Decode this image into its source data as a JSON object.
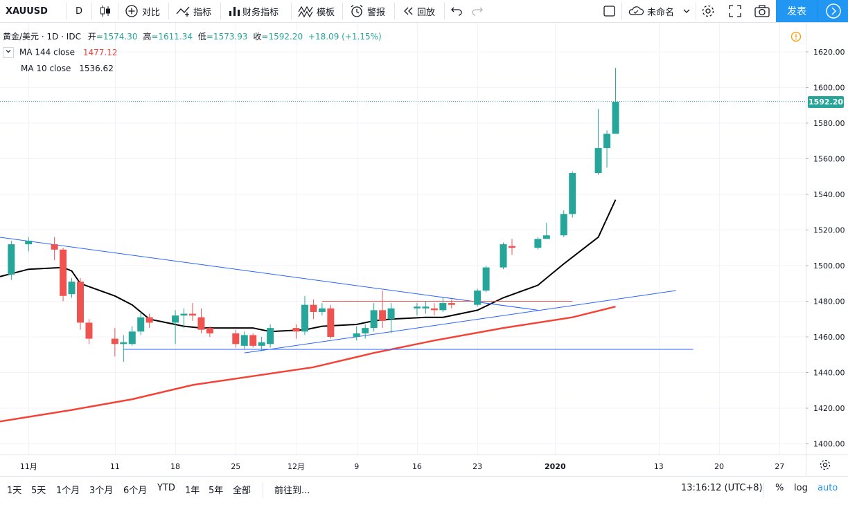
{
  "toolbar": {
    "symbol": "XAUUSD",
    "interval": "D",
    "compare": "对比",
    "indicators": "指标",
    "financials": "财务指标",
    "templates": "模板",
    "alert": "警报",
    "replay": "回放",
    "layout_name": "未命名",
    "publish": "发表"
  },
  "legend": {
    "title": "黄金/美元 · 1D · IDC",
    "open_label": "开",
    "open": "=1574.30",
    "high_label": "高",
    "high": "=1611.34",
    "low_label": "低",
    "low": "=1573.93",
    "close_label": "收",
    "close": "=1592.20",
    "change": "+18.09 (+1.15%)",
    "ma144_label": "MA 144 close",
    "ma144_value": "1477.12",
    "ma10_label": "MA 10 close",
    "ma10_value": "1536.62"
  },
  "bottombar": {
    "ranges": [
      "1天",
      "5天",
      "1个月",
      "3个月",
      "6个月",
      "YTD",
      "1年",
      "5年",
      "全部"
    ],
    "goto": "前往到...",
    "time": "13:16:12 (UTC+8)",
    "percent": "%",
    "log": "log",
    "auto": "auto"
  },
  "colors": {
    "up": "#26a69a",
    "down": "#ef5350",
    "ma144": "#f44336",
    "ma10": "#000000",
    "trend": "#2962ff",
    "accent": "#2196f3"
  },
  "chart_data": {
    "type": "candlestick",
    "title": "黄金/美元 · 1D · IDC",
    "ylim": [
      1390,
      1630
    ],
    "y_ticks": [
      1400,
      1420,
      1440,
      1460,
      1480,
      1500,
      1520,
      1540,
      1560,
      1580,
      1600,
      1620
    ],
    "last_price": 1592.2,
    "x_ticks": [
      {
        "label": "11月",
        "date": "2019-11-01"
      },
      {
        "label": "11",
        "date": "2019-11-11"
      },
      {
        "label": "18",
        "date": "2019-11-18"
      },
      {
        "label": "25",
        "date": "2019-11-25"
      },
      {
        "label": "12月",
        "date": "2019-12-02"
      },
      {
        "label": "9",
        "date": "2019-12-09"
      },
      {
        "label": "16",
        "date": "2019-12-16"
      },
      {
        "label": "23",
        "date": "2019-12-23"
      },
      {
        "label": "2020",
        "date": "2020-01-01"
      },
      {
        "label": "13",
        "date": "2020-01-13"
      },
      {
        "label": "20",
        "date": "2020-01-20"
      },
      {
        "label": "27",
        "date": "2020-01-27"
      }
    ],
    "candles": [
      {
        "date": "2019-10-28",
        "o": 1487,
        "h": 1497,
        "l": 1481,
        "c": 1495
      },
      {
        "date": "2019-10-30",
        "o": 1495,
        "h": 1514,
        "l": 1492,
        "c": 1512
      },
      {
        "date": "2019-11-01",
        "o": 1512,
        "h": 1516,
        "l": 1508,
        "c": 1514
      },
      {
        "date": "2019-11-04",
        "o": 1512,
        "h": 1516,
        "l": 1503,
        "c": 1509
      },
      {
        "date": "2019-11-05",
        "o": 1509,
        "h": 1510,
        "l": 1480,
        "c": 1483
      },
      {
        "date": "2019-11-06",
        "o": 1484,
        "h": 1493,
        "l": 1482,
        "c": 1491
      },
      {
        "date": "2019-11-07",
        "o": 1491,
        "h": 1493,
        "l": 1464,
        "c": 1468
      },
      {
        "date": "2019-11-08",
        "o": 1468,
        "h": 1470,
        "l": 1456,
        "c": 1459
      },
      {
        "date": "2019-11-11",
        "o": 1459,
        "h": 1465,
        "l": 1449,
        "c": 1456
      },
      {
        "date": "2019-11-12",
        "o": 1456,
        "h": 1461,
        "l": 1446,
        "c": 1457
      },
      {
        "date": "2019-11-13",
        "o": 1456,
        "h": 1466,
        "l": 1455,
        "c": 1463
      },
      {
        "date": "2019-11-14",
        "o": 1463,
        "h": 1474,
        "l": 1461,
        "c": 1471
      },
      {
        "date": "2019-11-15",
        "o": 1471,
        "h": 1473,
        "l": 1465,
        "c": 1468
      },
      {
        "date": "2019-11-18",
        "o": 1468,
        "h": 1475,
        "l": 1456,
        "c": 1472
      },
      {
        "date": "2019-11-19",
        "o": 1472,
        "h": 1476,
        "l": 1465,
        "c": 1473
      },
      {
        "date": "2019-11-20",
        "o": 1473,
        "h": 1479,
        "l": 1469,
        "c": 1472
      },
      {
        "date": "2019-11-21",
        "o": 1471,
        "h": 1476,
        "l": 1462,
        "c": 1464
      },
      {
        "date": "2019-11-22",
        "o": 1465,
        "h": 1466,
        "l": 1460,
        "c": 1462
      },
      {
        "date": "2019-11-25",
        "o": 1462,
        "h": 1464,
        "l": 1454,
        "c": 1456
      },
      {
        "date": "2019-11-26",
        "o": 1455,
        "h": 1463,
        "l": 1453,
        "c": 1461
      },
      {
        "date": "2019-11-27",
        "o": 1461,
        "h": 1462,
        "l": 1454,
        "c": 1455
      },
      {
        "date": "2019-11-28",
        "o": 1455,
        "h": 1460,
        "l": 1452,
        "c": 1457
      },
      {
        "date": "2019-11-29",
        "o": 1456,
        "h": 1467,
        "l": 1454,
        "c": 1465
      },
      {
        "date": "2019-12-02",
        "o": 1465,
        "h": 1467,
        "l": 1459,
        "c": 1463
      },
      {
        "date": "2019-12-03",
        "o": 1463,
        "h": 1483,
        "l": 1461,
        "c": 1478
      },
      {
        "date": "2019-12-04",
        "o": 1478,
        "h": 1481,
        "l": 1470,
        "c": 1474
      },
      {
        "date": "2019-12-05",
        "o": 1474,
        "h": 1479,
        "l": 1472,
        "c": 1476
      },
      {
        "date": "2019-12-06",
        "o": 1476,
        "h": 1478,
        "l": 1459,
        "c": 1460
      },
      {
        "date": "2019-12-09",
        "o": 1460,
        "h": 1466,
        "l": 1458,
        "c": 1462
      },
      {
        "date": "2019-12-10",
        "o": 1462,
        "h": 1467,
        "l": 1459,
        "c": 1465
      },
      {
        "date": "2019-12-11",
        "o": 1465,
        "h": 1479,
        "l": 1463,
        "c": 1475
      },
      {
        "date": "2019-12-12",
        "o": 1475,
        "h": 1486,
        "l": 1465,
        "c": 1469
      },
      {
        "date": "2019-12-13",
        "o": 1470,
        "h": 1479,
        "l": 1462,
        "c": 1476
      },
      {
        "date": "2019-12-16",
        "o": 1476,
        "h": 1479,
        "l": 1472,
        "c": 1477
      },
      {
        "date": "2019-12-17",
        "o": 1476,
        "h": 1480,
        "l": 1473,
        "c": 1477
      },
      {
        "date": "2019-12-18",
        "o": 1476,
        "h": 1479,
        "l": 1472,
        "c": 1475
      },
      {
        "date": "2019-12-19",
        "o": 1475,
        "h": 1482,
        "l": 1474,
        "c": 1479
      },
      {
        "date": "2019-12-20",
        "o": 1479,
        "h": 1481,
        "l": 1476,
        "c": 1478
      },
      {
        "date": "2019-12-23",
        "o": 1478,
        "h": 1487,
        "l": 1477,
        "c": 1486
      },
      {
        "date": "2019-12-24",
        "o": 1486,
        "h": 1500,
        "l": 1485,
        "c": 1499
      },
      {
        "date": "2019-12-26",
        "o": 1499,
        "h": 1513,
        "l": 1498,
        "c": 1512
      },
      {
        "date": "2019-12-27",
        "o": 1511,
        "h": 1515,
        "l": 1506,
        "c": 1510
      },
      {
        "date": "2019-12-30",
        "o": 1510,
        "h": 1516,
        "l": 1509,
        "c": 1515
      },
      {
        "date": "2019-12-31",
        "o": 1515,
        "h": 1524,
        "l": 1515,
        "c": 1517
      },
      {
        "date": "2020-01-02",
        "o": 1517,
        "h": 1531,
        "l": 1516,
        "c": 1529
      },
      {
        "date": "2020-01-03",
        "o": 1529,
        "h": 1553,
        "l": 1527,
        "c": 1552
      },
      {
        "date": "2020-01-06",
        "o": 1552,
        "h": 1588,
        "l": 1551,
        "c": 1566
      },
      {
        "date": "2020-01-07",
        "o": 1566,
        "h": 1576,
        "l": 1555,
        "c": 1574
      },
      {
        "date": "2020-01-08",
        "o": 1574,
        "h": 1611,
        "l": 1574,
        "c": 1592
      }
    ],
    "series": [
      {
        "name": "MA 144 close",
        "points": [
          [
            0,
            1412
          ],
          [
            5,
            1419
          ],
          [
            10,
            1425
          ],
          [
            15,
            1433
          ],
          [
            20,
            1438
          ],
          [
            25,
            1443
          ],
          [
            30,
            1451
          ],
          [
            35,
            1458
          ],
          [
            40,
            1465
          ],
          [
            45,
            1471
          ],
          [
            48,
            1477
          ]
        ]
      },
      {
        "name": "MA 10 close",
        "points": [
          [
            0,
            1493
          ],
          [
            2,
            1498
          ],
          [
            4,
            1499
          ],
          [
            5,
            1497
          ],
          [
            6,
            1490
          ],
          [
            8,
            1483
          ],
          [
            10,
            1478
          ],
          [
            12,
            1470
          ],
          [
            14,
            1466
          ],
          [
            16,
            1465
          ],
          [
            18,
            1465
          ],
          [
            20,
            1465
          ],
          [
            22,
            1463
          ],
          [
            24,
            1464
          ],
          [
            26,
            1466
          ],
          [
            28,
            1467
          ],
          [
            30,
            1469
          ],
          [
            32,
            1470
          ],
          [
            34,
            1471
          ],
          [
            36,
            1471
          ],
          [
            38,
            1475
          ],
          [
            40,
            1482
          ],
          [
            42,
            1489
          ],
          [
            44,
            1501
          ],
          [
            46,
            1516
          ],
          [
            48,
            1537
          ]
        ]
      }
    ],
    "drawings": [
      {
        "type": "trendline",
        "color": "#2962ff",
        "points": [
          [
            -2,
            1519
          ],
          [
            42,
            1475
          ]
        ]
      },
      {
        "type": "trendline",
        "color": "#2962ff",
        "points": [
          [
            19,
            1451
          ],
          [
            55,
            1486
          ]
        ]
      },
      {
        "type": "horizontal",
        "color": "#2962ff",
        "y": 1453,
        "from": 9,
        "to": 57
      },
      {
        "type": "horizontal",
        "color": "#ef5350",
        "y": 1480,
        "from": 26,
        "to": 45
      }
    ]
  }
}
